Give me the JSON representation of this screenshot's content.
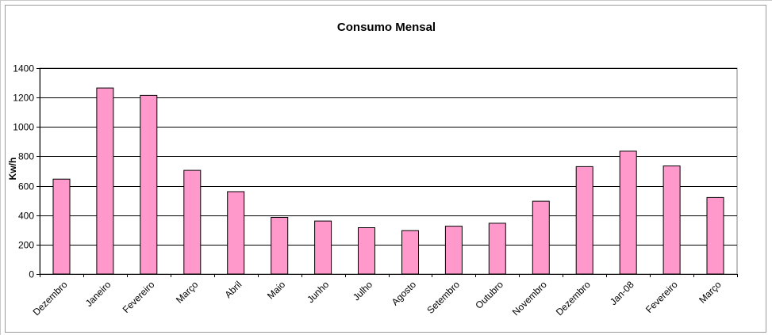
{
  "chart_data": {
    "type": "bar",
    "title": "Consumo Mensal",
    "xlabel": "",
    "ylabel": "Kw/h",
    "ylim": [
      0,
      1400
    ],
    "yticks": [
      0,
      200,
      400,
      600,
      800,
      1000,
      1200,
      1400
    ],
    "grid": true,
    "categories": [
      "Dezembro",
      "Janeiro",
      "Fevereiro",
      "Março",
      "Abril",
      "Maio",
      "Junho",
      "Julho",
      "Agosto",
      "Setembro",
      "Outubro",
      "Novembro",
      "Dezembro",
      "Jan-08",
      "Fevereiro",
      "Março"
    ],
    "values": [
      645,
      1265,
      1215,
      705,
      560,
      385,
      360,
      315,
      295,
      325,
      345,
      495,
      730,
      835,
      735,
      520
    ],
    "colors": {
      "bar_fill": "#ff99cc",
      "bar_stroke": "#000000",
      "gridline": "#000000",
      "plot_bg": "#ffffff"
    }
  }
}
